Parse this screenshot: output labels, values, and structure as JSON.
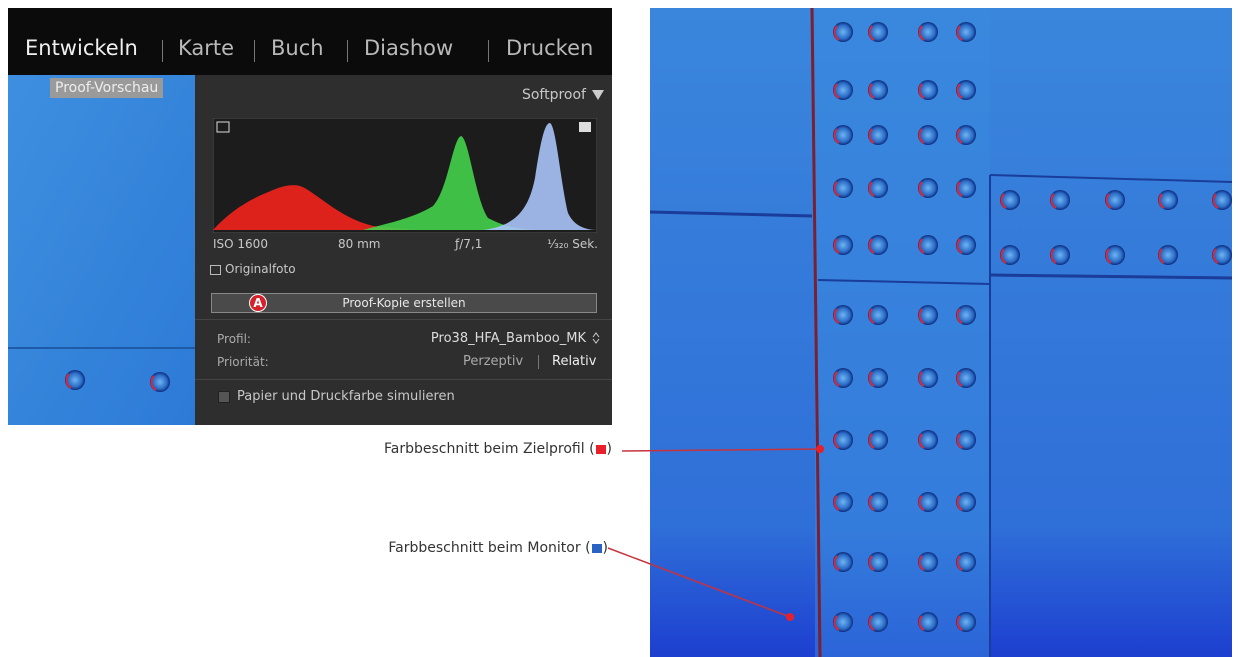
{
  "nav": {
    "items": [
      "Entwickeln",
      "Karte",
      "Buch",
      "Diashow",
      "Drucken"
    ]
  },
  "preview": {
    "label": "Proof-Vorschau"
  },
  "panel": {
    "title": "Softproof",
    "exif": {
      "iso": "ISO 1600",
      "focal": "80 mm",
      "aperture": "ƒ/7,1",
      "shutter": "¹⁄₃₂₀ Sek."
    },
    "original_checkbox": "Originalfoto",
    "badge": "A",
    "button": "Proof-Kopie erstellen",
    "profile_label": "Profil:",
    "profile_value": "Pro38_HFA_Bamboo_MK",
    "priority_label": "Priorität:",
    "priority_options": [
      "Perzeptiv",
      "Relativ"
    ],
    "simulate_checkbox": "Papier und Druckfarbe simulieren"
  },
  "annotations": [
    {
      "text_before": "Farbbeschnitt beim Zielprofil (",
      "text_after": ")",
      "color": "#e8202a"
    },
    {
      "text_before": "Farbbeschnitt beim Monitor (",
      "text_after": ")",
      "color": "#2a62c4"
    }
  ]
}
